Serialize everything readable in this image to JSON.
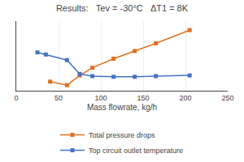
{
  "chart_data": {
    "type": "line",
    "title": "Results:   Tev = -30°C   ΔT1 = 8K",
    "x_label": "Mass flowrate, kg/h",
    "xlim": [
      0,
      250
    ],
    "xticks": [
      0,
      50,
      100,
      150,
      200,
      250
    ],
    "ylim": [
      0,
      1
    ],
    "tick_labels": "x",
    "grid": true,
    "legend": "bottom",
    "series": [
      {
        "name": "Total pressure drops",
        "color": "#e07020",
        "marker": "square",
        "line_style": "solid",
        "x": [
          40,
          60,
          75,
          90,
          115,
          140,
          165,
          205
        ],
        "values": [
          0.13,
          0.08,
          0.22,
          0.33,
          0.46,
          0.57,
          0.68,
          0.87
        ]
      },
      {
        "name": "Top circuit outlet temperature",
        "color": "#4472c4",
        "marker": "square",
        "line_style": "solid",
        "x": [
          25,
          35,
          60,
          75,
          90,
          115,
          140,
          165,
          205
        ],
        "values": [
          0.55,
          0.52,
          0.44,
          0.24,
          0.21,
          0.2,
          0.2,
          0.21,
          0.22
        ]
      }
    ]
  }
}
